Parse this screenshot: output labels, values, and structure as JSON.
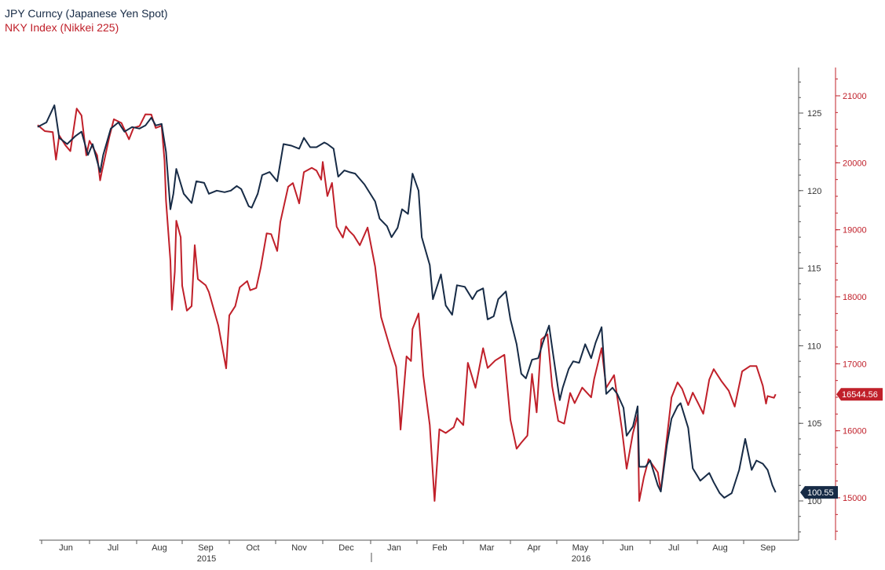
{
  "legend": {
    "series1": "JPY Curncy (Japanese Yen Spot)",
    "series2": "NKY Index (Nikkei 225)"
  },
  "colors": {
    "jpy": "#172b46",
    "nky": "#c0202a",
    "axis": "#555555",
    "text": "#333333"
  },
  "chart_data": {
    "type": "line",
    "title": "",
    "x_ticks": [
      "Jun",
      "Jul",
      "Aug",
      "Sep",
      "Oct",
      "Nov",
      "Dec",
      "Jan",
      "Feb",
      "Mar",
      "Apr",
      "May",
      "Jun",
      "Jul",
      "Aug",
      "Sep"
    ],
    "year_labels": [
      "2015",
      "2016"
    ],
    "left_axis_ticks": [
      "100",
      "105",
      "110",
      "115",
      "120",
      "125"
    ],
    "right_axis_ticks": [
      "15000",
      "16000",
      "17000",
      "18000",
      "19000",
      "20000",
      "21000"
    ],
    "y_left_range": [
      98,
      127
    ],
    "y_right_range": [
      14400,
      21500
    ],
    "last_value_labels": {
      "jpy": "100.55",
      "nky": "16544.56"
    },
    "series": [
      {
        "name": "JPY Curncy (Japanese Yen Spot)",
        "axis": "left",
        "points": [
          [
            "2015-05-29",
            124.1
          ],
          [
            "2015-06-04",
            124.4
          ],
          [
            "2015-06-09",
            125.5
          ],
          [
            "2015-06-12",
            123.4
          ],
          [
            "2015-06-17",
            123.0
          ],
          [
            "2015-06-22",
            123.5
          ],
          [
            "2015-06-26",
            123.8
          ],
          [
            "2015-06-30",
            122.3
          ],
          [
            "2015-07-03",
            123.0
          ],
          [
            "2015-07-08",
            121.2
          ],
          [
            "2015-07-10",
            122.3
          ],
          [
            "2015-07-15",
            124.0
          ],
          [
            "2015-07-20",
            124.4
          ],
          [
            "2015-07-24",
            123.8
          ],
          [
            "2015-07-29",
            124.1
          ],
          [
            "2015-08-03",
            124.0
          ],
          [
            "2015-08-07",
            124.2
          ],
          [
            "2015-08-11",
            124.7
          ],
          [
            "2015-08-14",
            124.2
          ],
          [
            "2015-08-18",
            124.3
          ],
          [
            "2015-08-21",
            122.5
          ],
          [
            "2015-08-24",
            118.8
          ],
          [
            "2015-08-26",
            119.8
          ],
          [
            "2015-08-28",
            121.4
          ],
          [
            "2015-09-02",
            119.8
          ],
          [
            "2015-09-07",
            119.2
          ],
          [
            "2015-09-10",
            120.6
          ],
          [
            "2015-09-15",
            120.5
          ],
          [
            "2015-09-18",
            119.8
          ],
          [
            "2015-09-23",
            120.0
          ],
          [
            "2015-09-28",
            119.9
          ],
          [
            "2015-10-02",
            120.0
          ],
          [
            "2015-10-06",
            120.3
          ],
          [
            "2015-10-09",
            120.1
          ],
          [
            "2015-10-14",
            119.0
          ],
          [
            "2015-10-16",
            118.9
          ],
          [
            "2015-10-20",
            119.8
          ],
          [
            "2015-10-23",
            121.0
          ],
          [
            "2015-10-28",
            121.2
          ],
          [
            "2015-11-02",
            120.6
          ],
          [
            "2015-11-06",
            123.0
          ],
          [
            "2015-11-11",
            122.9
          ],
          [
            "2015-11-16",
            122.7
          ],
          [
            "2015-11-19",
            123.4
          ],
          [
            "2015-11-23",
            122.8
          ],
          [
            "2015-11-27",
            122.8
          ],
          [
            "2015-12-02",
            123.1
          ],
          [
            "2015-12-04",
            123.0
          ],
          [
            "2015-12-08",
            122.7
          ],
          [
            "2015-12-11",
            120.9
          ],
          [
            "2015-12-15",
            121.3
          ],
          [
            "2015-12-18",
            121.2
          ],
          [
            "2015-12-22",
            121.1
          ],
          [
            "2015-12-28",
            120.4
          ],
          [
            "2016-01-04",
            119.3
          ],
          [
            "2016-01-07",
            118.2
          ],
          [
            "2016-01-12",
            117.7
          ],
          [
            "2016-01-15",
            117.0
          ],
          [
            "2016-01-19",
            117.6
          ],
          [
            "2016-01-22",
            118.8
          ],
          [
            "2016-01-26",
            118.5
          ],
          [
            "2016-01-29",
            121.1
          ],
          [
            "2016-02-02",
            120.0
          ],
          [
            "2016-02-04",
            117.0
          ],
          [
            "2016-02-09",
            115.2
          ],
          [
            "2016-02-11",
            113.0
          ],
          [
            "2016-02-16",
            114.6
          ],
          [
            "2016-02-19",
            112.6
          ],
          [
            "2016-02-23",
            112.0
          ],
          [
            "2016-02-26",
            113.9
          ],
          [
            "2016-03-02",
            113.8
          ],
          [
            "2016-03-07",
            113.0
          ],
          [
            "2016-03-10",
            113.5
          ],
          [
            "2016-03-14",
            113.7
          ],
          [
            "2016-03-17",
            111.7
          ],
          [
            "2016-03-21",
            111.9
          ],
          [
            "2016-03-24",
            113.0
          ],
          [
            "2016-03-29",
            113.5
          ],
          [
            "2016-04-01",
            111.7
          ],
          [
            "2016-04-05",
            110.1
          ],
          [
            "2016-04-08",
            108.2
          ],
          [
            "2016-04-11",
            107.9
          ],
          [
            "2016-04-15",
            109.1
          ],
          [
            "2016-04-19",
            109.2
          ],
          [
            "2016-04-22",
            110.2
          ],
          [
            "2016-04-26",
            111.3
          ],
          [
            "2016-04-28",
            109.9
          ],
          [
            "2016-05-03",
            106.5
          ],
          [
            "2016-05-05",
            107.3
          ],
          [
            "2016-05-09",
            108.5
          ],
          [
            "2016-05-12",
            109.0
          ],
          [
            "2016-05-16",
            108.9
          ],
          [
            "2016-05-20",
            110.1
          ],
          [
            "2016-05-24",
            109.2
          ],
          [
            "2016-05-27",
            110.2
          ],
          [
            "2016-05-31",
            111.2
          ],
          [
            "2016-06-03",
            106.9
          ],
          [
            "2016-06-07",
            107.3
          ],
          [
            "2016-06-10",
            106.9
          ],
          [
            "2016-06-14",
            106.0
          ],
          [
            "2016-06-16",
            104.2
          ],
          [
            "2016-06-20",
            104.8
          ],
          [
            "2016-06-23",
            106.1
          ],
          [
            "2016-06-24",
            102.2
          ],
          [
            "2016-06-28",
            102.2
          ],
          [
            "2016-07-01",
            102.6
          ],
          [
            "2016-07-06",
            101.0
          ],
          [
            "2016-07-08",
            100.6
          ],
          [
            "2016-07-12",
            103.6
          ],
          [
            "2016-07-15",
            105.3
          ],
          [
            "2016-07-19",
            106.1
          ],
          [
            "2016-07-21",
            106.3
          ],
          [
            "2016-07-26",
            104.7
          ],
          [
            "2016-07-29",
            102.1
          ],
          [
            "2016-08-03",
            101.3
          ],
          [
            "2016-08-09",
            101.8
          ],
          [
            "2016-08-12",
            101.2
          ],
          [
            "2016-08-16",
            100.5
          ],
          [
            "2016-08-19",
            100.2
          ],
          [
            "2016-08-24",
            100.5
          ],
          [
            "2016-08-29",
            102.0
          ],
          [
            "2016-09-02",
            104.0
          ],
          [
            "2016-09-06",
            102.0
          ],
          [
            "2016-09-09",
            102.6
          ],
          [
            "2016-09-13",
            102.4
          ],
          [
            "2016-09-16",
            102.0
          ],
          [
            "2016-09-19",
            101.0
          ],
          [
            "2016-09-21",
            100.55
          ]
        ]
      },
      {
        "name": "NKY Index (Nikkei 225)",
        "axis": "right",
        "points": [
          [
            "2015-05-29",
            20563
          ],
          [
            "2015-06-03",
            20473
          ],
          [
            "2015-06-08",
            20457
          ],
          [
            "2015-06-10",
            20046
          ],
          [
            "2015-06-12",
            20407
          ],
          [
            "2015-06-16",
            20258
          ],
          [
            "2015-06-19",
            20174
          ],
          [
            "2015-06-23",
            20809
          ],
          [
            "2015-06-26",
            20706
          ],
          [
            "2015-06-29",
            20110
          ],
          [
            "2015-07-01",
            20329
          ],
          [
            "2015-07-06",
            20112
          ],
          [
            "2015-07-08",
            19738
          ],
          [
            "2015-07-09",
            19856
          ],
          [
            "2015-07-14",
            20385
          ],
          [
            "2015-07-17",
            20650
          ],
          [
            "2015-07-22",
            20594
          ],
          [
            "2015-07-27",
            20351
          ],
          [
            "2015-07-30",
            20522
          ],
          [
            "2015-08-03",
            20548
          ],
          [
            "2015-08-07",
            20724
          ],
          [
            "2015-08-11",
            20720
          ],
          [
            "2015-08-14",
            20519
          ],
          [
            "2015-08-18",
            20554
          ],
          [
            "2015-08-20",
            20033
          ],
          [
            "2015-08-21",
            19435
          ],
          [
            "2015-08-24",
            18540
          ],
          [
            "2015-08-25",
            17806
          ],
          [
            "2015-08-27",
            18375
          ],
          [
            "2015-08-28",
            19136
          ],
          [
            "2015-08-31",
            18890
          ],
          [
            "2015-09-01",
            18165
          ],
          [
            "2015-09-04",
            17792
          ],
          [
            "2015-09-07",
            17860
          ],
          [
            "2015-09-09",
            18770
          ],
          [
            "2015-09-11",
            18264
          ],
          [
            "2015-09-16",
            18171
          ],
          [
            "2015-09-18",
            18070
          ],
          [
            "2015-09-24",
            17571
          ],
          [
            "2015-09-29",
            16931
          ],
          [
            "2015-10-01",
            17722
          ],
          [
            "2015-10-05",
            17860
          ],
          [
            "2015-10-08",
            18141
          ],
          [
            "2015-10-13",
            18234
          ],
          [
            "2015-10-15",
            18097
          ],
          [
            "2015-10-19",
            18131
          ],
          [
            "2015-10-22",
            18435
          ],
          [
            "2015-10-26",
            18947
          ],
          [
            "2015-10-29",
            18935
          ],
          [
            "2015-11-02",
            18683
          ],
          [
            "2015-11-04",
            19117
          ],
          [
            "2015-11-09",
            19643
          ],
          [
            "2015-11-12",
            19697
          ],
          [
            "2015-11-16",
            19393
          ],
          [
            "2015-11-19",
            19860
          ],
          [
            "2015-11-24",
            19924
          ],
          [
            "2015-11-27",
            19884
          ],
          [
            "2015-11-30",
            19748
          ],
          [
            "2015-12-01",
            20012
          ],
          [
            "2015-12-04",
            19504
          ],
          [
            "2015-12-07",
            19699
          ],
          [
            "2015-12-10",
            19046
          ],
          [
            "2015-12-14",
            18884
          ],
          [
            "2015-12-16",
            19050
          ],
          [
            "2015-12-18",
            18986
          ],
          [
            "2015-12-21",
            18916
          ],
          [
            "2015-12-25",
            18769
          ],
          [
            "2015-12-30",
            19034
          ],
          [
            "2016-01-04",
            18451
          ],
          [
            "2016-01-08",
            17698
          ],
          [
            "2016-01-14",
            17240
          ],
          [
            "2016-01-18",
            16956
          ],
          [
            "2016-01-20",
            16417
          ],
          [
            "2016-01-21",
            16017
          ],
          [
            "2016-01-25",
            17111
          ],
          [
            "2016-01-28",
            17041
          ],
          [
            "2016-01-29",
            17518
          ],
          [
            "2016-02-02",
            17750
          ],
          [
            "2016-02-05",
            16819
          ],
          [
            "2016-02-09",
            16085
          ],
          [
            "2016-02-12",
            14953
          ],
          [
            "2016-02-15",
            16022
          ],
          [
            "2016-02-19",
            15967
          ],
          [
            "2016-02-24",
            16052
          ],
          [
            "2016-02-26",
            16188
          ],
          [
            "2016-03-01",
            16085
          ],
          [
            "2016-03-04",
            17014
          ],
          [
            "2016-03-09",
            16642
          ],
          [
            "2016-03-14",
            17233
          ],
          [
            "2016-03-17",
            16937
          ],
          [
            "2016-03-22",
            17048
          ],
          [
            "2016-03-28",
            17134
          ],
          [
            "2016-04-01",
            16164
          ],
          [
            "2016-04-05",
            15733
          ],
          [
            "2016-04-08",
            15821
          ],
          [
            "2016-04-12",
            15928
          ],
          [
            "2016-04-15",
            16848
          ],
          [
            "2016-04-18",
            16275
          ],
          [
            "2016-04-21",
            17363
          ],
          [
            "2016-04-25",
            17440
          ],
          [
            "2016-04-28",
            16666
          ],
          [
            "2016-05-02",
            16147
          ],
          [
            "2016-05-06",
            16106
          ],
          [
            "2016-05-10",
            16565
          ],
          [
            "2016-05-13",
            16412
          ],
          [
            "2016-05-18",
            16644
          ],
          [
            "2016-05-24",
            16499
          ],
          [
            "2016-05-26",
            16772
          ],
          [
            "2016-05-31",
            17234
          ],
          [
            "2016-06-03",
            16642
          ],
          [
            "2016-06-08",
            16830
          ],
          [
            "2016-06-13",
            16019
          ],
          [
            "2016-06-16",
            15434
          ],
          [
            "2016-06-20",
            15965
          ],
          [
            "2016-06-23",
            16238
          ],
          [
            "2016-06-24",
            14952
          ],
          [
            "2016-06-27",
            15309
          ],
          [
            "2016-06-30",
            15575
          ],
          [
            "2016-07-06",
            15378
          ],
          [
            "2016-07-08",
            15106
          ],
          [
            "2016-07-11",
            15708
          ],
          [
            "2016-07-15",
            16497
          ],
          [
            "2016-07-19",
            16723
          ],
          [
            "2016-07-22",
            16627
          ],
          [
            "2016-07-26",
            16383
          ],
          [
            "2016-07-29",
            16569
          ],
          [
            "2016-08-02",
            16391
          ],
          [
            "2016-08-05",
            16254
          ],
          [
            "2016-08-09",
            16764
          ],
          [
            "2016-08-12",
            16919
          ],
          [
            "2016-08-17",
            16745
          ],
          [
            "2016-08-22",
            16598
          ],
          [
            "2016-08-26",
            16360
          ],
          [
            "2016-08-31",
            16887
          ],
          [
            "2016-09-05",
            16965
          ],
          [
            "2016-09-09",
            16965
          ],
          [
            "2016-09-13",
            16672
          ],
          [
            "2016-09-15",
            16405
          ],
          [
            "2016-09-16",
            16519
          ],
          [
            "2016-09-20",
            16492
          ],
          [
            "2016-09-21",
            16544.56
          ]
        ]
      }
    ]
  }
}
